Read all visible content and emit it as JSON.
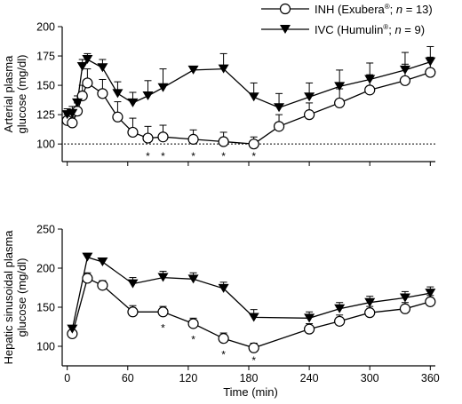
{
  "chart_data": {
    "type": "line",
    "legend": {
      "placement": "top-right",
      "entries": [
        {
          "series": "INH",
          "prefix": "INH (Exubera",
          "reg": "®",
          "mid": "; ",
          "n_sym": "n",
          "n_text": " = 13)",
          "marker": "open-circle"
        },
        {
          "series": "IVC",
          "prefix": "IVC (Humulin",
          "reg": "®",
          "mid": "; ",
          "n_sym": "n",
          "n_text": " = 9)",
          "marker": "filled-triangle-down"
        }
      ]
    },
    "xlabel": "Time (min)",
    "xlim": [
      -5,
      365
    ],
    "x_ticks": [
      0,
      60,
      120,
      180,
      240,
      300,
      360
    ],
    "panels": [
      {
        "id": "arterial",
        "ylabel_lines": [
          "Arterial plasma",
          "glucose (mg/dl)"
        ],
        "ylim": [
          85,
          200
        ],
        "y_ticks": [
          100,
          125,
          150,
          175,
          200
        ],
        "reference_line": 100,
        "series": [
          {
            "name": "INH",
            "marker": "open-circle",
            "x": [
              0,
              5,
              10,
              15,
              20,
              35,
              50,
              65,
              80,
              95,
              125,
              155,
              185,
              210,
              240,
              270,
              300,
              335,
              360
            ],
            "y": [
              120,
              118,
              128,
              141,
              152,
              143,
              123,
              110,
              105,
              106,
              104,
              102,
              100,
              115,
              125,
              135,
              146,
              154,
              161
            ],
            "err": [
              5,
              5,
              7,
              9,
              12,
              12,
              13,
              12,
              10,
              10,
              8,
              8,
              6,
              10,
              10,
              12,
              13,
              14,
              13
            ]
          },
          {
            "name": "IVC",
            "marker": "filled-triangle-down",
            "x": [
              0,
              5,
              10,
              15,
              20,
              35,
              50,
              65,
              80,
              95,
              125,
              155,
              185,
              210,
              240,
              270,
              300,
              335,
              360
            ],
            "y": [
              125,
              126,
              135,
              166,
              172,
              165,
              143,
              135,
              141,
              148,
              163,
              164,
              140,
              131,
              140,
              149,
              155,
              163,
              170
            ],
            "err": [
              5,
              6,
              6,
              6,
              5,
              7,
              10,
              9,
              13,
              16,
              3,
              13,
              12,
              12,
              12,
              14,
              14,
              15,
              13
            ]
          }
        ],
        "significance": {
          "symbol": "*",
          "x": [
            80,
            95,
            125,
            155,
            185
          ]
        }
      },
      {
        "id": "hepatic",
        "ylabel_lines": [
          "Hepatic sinusoidal plasma",
          "glucose (mg/dl)"
        ],
        "ylim": [
          75,
          250
        ],
        "y_ticks": [
          100,
          150,
          200,
          250
        ],
        "series": [
          {
            "name": "INH",
            "marker": "open-circle",
            "x": [
              5,
              20,
              35,
              65,
              95,
              125,
              155,
              185,
              240,
              270,
              300,
              335,
              360
            ],
            "y": [
              116,
              187,
              178,
              144,
              144,
              129,
              110,
              98,
              122,
              132,
              143,
              148,
              157
            ],
            "err": [
              4,
              7,
              6,
              8,
              7,
              7,
              7,
              6,
              7,
              8,
              8,
              8,
              8
            ]
          },
          {
            "name": "IVC",
            "marker": "filled-triangle-down",
            "x": [
              5,
              20,
              35,
              65,
              95,
              125,
              155,
              185,
              240,
              270,
              300,
              335,
              360
            ],
            "y": [
              122,
              214,
              208,
              180,
              188,
              186,
              174,
              137,
              136,
              148,
              156,
              162,
              168
            ],
            "err": [
              4,
              5,
              5,
              8,
              8,
              8,
              8,
              10,
              8,
              8,
              8,
              8,
              8
            ]
          }
        ],
        "significance": {
          "symbol": "*",
          "x": [
            95,
            125,
            155,
            185
          ]
        }
      }
    ]
  }
}
